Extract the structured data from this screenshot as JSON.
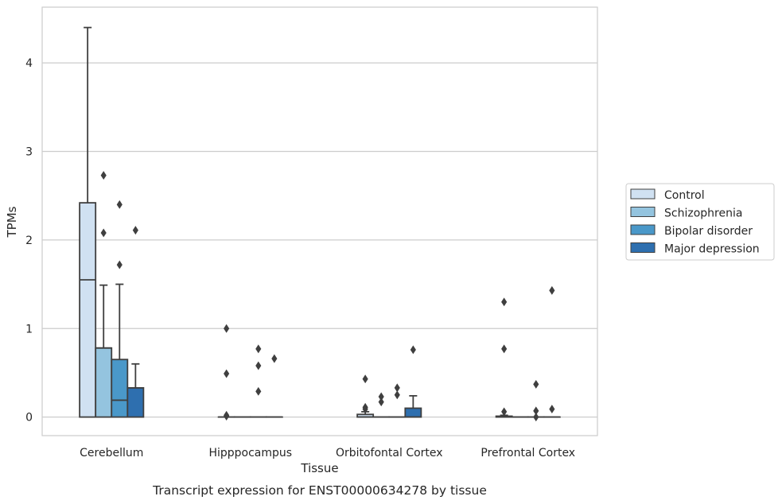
{
  "caption": "Transcript expression for ENST00000634278 by tissue",
  "chart_data": {
    "type": "box",
    "xlabel": "Tissue",
    "ylabel": "TPMs",
    "ylim": [
      -0.21,
      4.63
    ],
    "yticks": [
      0,
      1,
      2,
      3,
      4
    ],
    "grid": true,
    "legend_placement": "right",
    "categories": [
      "Cerebellum",
      "Hipppocampus",
      "Orbitofontal Cortex",
      "Prefrontal Cortex"
    ],
    "series": [
      {
        "name": "Control",
        "color": "#d0e1f2",
        "boxes": [
          {
            "q1": 0,
            "median": 1.55,
            "q3": 2.42,
            "whisker_low": 0,
            "whisker_high": 4.4,
            "outliers": []
          },
          {
            "q1": 0,
            "median": 0,
            "q3": 0,
            "whisker_low": 0,
            "whisker_high": 0,
            "outliers": [
              1.0,
              0.49,
              0.02,
              0.01
            ]
          },
          {
            "q1": 0,
            "median": 0,
            "q3": 0.03,
            "whisker_low": 0,
            "whisker_high": 0.06,
            "outliers": [
              0.43,
              0.11,
              0.09
            ]
          },
          {
            "q1": 0,
            "median": 0,
            "q3": 0.01,
            "whisker_low": 0,
            "whisker_high": 0.02,
            "outliers": [
              1.3,
              0.77,
              0.06
            ]
          }
        ]
      },
      {
        "name": "Schizophrenia",
        "color": "#94c4df",
        "boxes": [
          {
            "q1": 0,
            "median": 0.78,
            "q3": 0.78,
            "whisker_low": 0,
            "whisker_high": 1.49,
            "outliers": [
              2.73,
              2.08
            ]
          },
          {
            "q1": 0,
            "median": 0,
            "q3": 0,
            "whisker_low": 0,
            "whisker_high": 0,
            "outliers": []
          },
          {
            "q1": 0,
            "median": 0,
            "q3": 0,
            "whisker_low": 0,
            "whisker_high": 0,
            "outliers": [
              0.23,
              0.17
            ]
          },
          {
            "q1": 0,
            "median": 0,
            "q3": 0,
            "whisker_low": 0,
            "whisker_high": 0,
            "outliers": []
          }
        ]
      },
      {
        "name": "Bipolar disorder",
        "color": "#4a98c9",
        "boxes": [
          {
            "q1": 0,
            "median": 0.19,
            "q3": 0.65,
            "whisker_low": 0,
            "whisker_high": 1.5,
            "outliers": [
              2.4,
              1.72
            ]
          },
          {
            "q1": 0,
            "median": 0,
            "q3": 0,
            "whisker_low": 0,
            "whisker_high": 0,
            "outliers": [
              0.77,
              0.58,
              0.29
            ]
          },
          {
            "q1": 0,
            "median": 0,
            "q3": 0,
            "whisker_low": 0,
            "whisker_high": 0,
            "outliers": [
              0.33,
              0.25
            ]
          },
          {
            "q1": 0,
            "median": 0,
            "q3": 0,
            "whisker_low": 0,
            "whisker_high": 0,
            "outliers": [
              0.37,
              0.07,
              0.0
            ]
          }
        ]
      },
      {
        "name": "Major depression",
        "color": "#2e6faf",
        "boxes": [
          {
            "q1": 0,
            "median": 0.33,
            "q3": 0.33,
            "whisker_low": 0,
            "whisker_high": 0.6,
            "outliers": [
              2.11
            ]
          },
          {
            "q1": 0,
            "median": 0,
            "q3": 0,
            "whisker_low": 0,
            "whisker_high": 0,
            "outliers": [
              0.66
            ]
          },
          {
            "q1": 0,
            "median": 0,
            "q3": 0.1,
            "whisker_low": 0,
            "whisker_high": 0.24,
            "outliers": [
              0.76
            ]
          },
          {
            "q1": 0,
            "median": 0,
            "q3": 0,
            "whisker_low": 0,
            "whisker_high": 0,
            "outliers": [
              1.43,
              0.09
            ]
          }
        ]
      }
    ]
  }
}
